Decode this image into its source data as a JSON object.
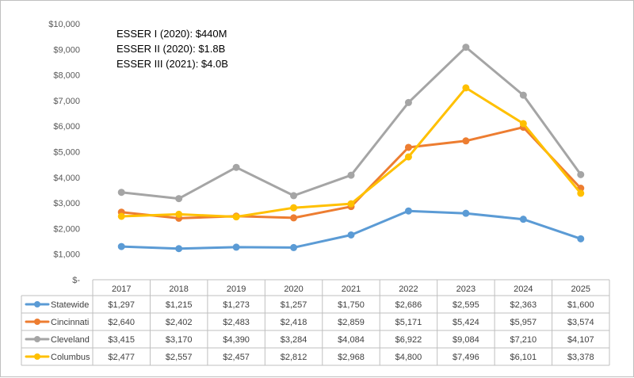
{
  "chart_data": {
    "type": "line",
    "title": "",
    "xlabel": "",
    "ylabel": "",
    "ylim": [
      0,
      10000
    ],
    "ytick_step": 1000,
    "ytick_labels": [
      "$-",
      "$1,000",
      "$2,000",
      "$3,000",
      "$4,000",
      "$5,000",
      "$6,000",
      "$7,000",
      "$8,000",
      "$9,000",
      "$10,000"
    ],
    "grid": false,
    "legend": "data-table-left",
    "categories": [
      "2017",
      "2018",
      "2019",
      "2020",
      "2021",
      "2022",
      "2023",
      "2024",
      "2025"
    ],
    "series": [
      {
        "name": "Statewide",
        "color": "#5b9bd5",
        "values": [
          1297,
          1215,
          1273,
          1257,
          1750,
          2686,
          2595,
          2363,
          1600
        ],
        "labels": [
          "$1,297",
          "$1,215",
          "$1,273",
          "$1,257",
          "$1,750",
          "$2,686",
          "$2,595",
          "$2,363",
          "$1,600"
        ]
      },
      {
        "name": "Cincinnati",
        "color": "#ed7d31",
        "values": [
          2640,
          2402,
          2483,
          2418,
          2859,
          5171,
          5424,
          5957,
          3574
        ],
        "labels": [
          "$2,640",
          "$2,402",
          "$2,483",
          "$2,418",
          "$2,859",
          "$5,171",
          "$5,424",
          "$5,957",
          "$3,574"
        ]
      },
      {
        "name": "Cleveland",
        "color": "#a5a5a5",
        "values": [
          3415,
          3170,
          4390,
          3284,
          4084,
          6922,
          9084,
          7210,
          4107
        ],
        "labels": [
          "$3,415",
          "$3,170",
          "$4,390",
          "$3,284",
          "$4,084",
          "$6,922",
          "$9,084",
          "$7,210",
          "$4,107"
        ]
      },
      {
        "name": "Columbus",
        "color": "#ffc000",
        "values": [
          2477,
          2557,
          2457,
          2812,
          2968,
          4800,
          7496,
          6101,
          3378
        ],
        "labels": [
          "$2,477",
          "$2,557",
          "$2,457",
          "$2,812",
          "$2,968",
          "$4,800",
          "$7,496",
          "$6,101",
          "$3,378"
        ]
      }
    ],
    "annotations": [
      "ESSER I (2020): $440M",
      "ESSER II (2020): $1.8B",
      "ESSER III (2021): $4.0B"
    ]
  }
}
